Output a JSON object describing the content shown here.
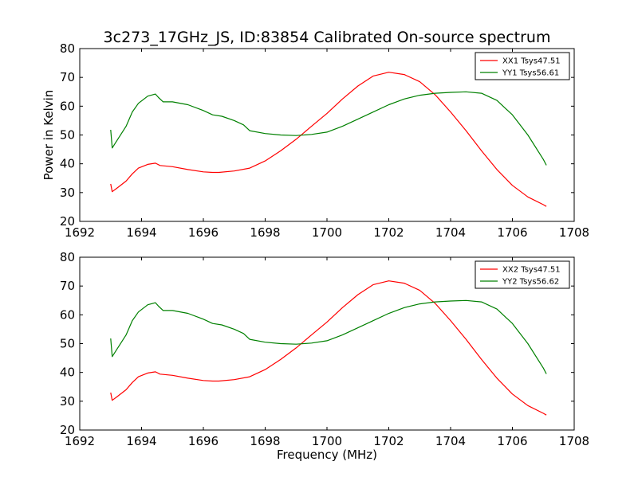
{
  "title": "3c273_17GHz_JS, ID:83854 Calibrated On-source spectrum",
  "colors": {
    "xx": "#ff0000",
    "yy": "#008000",
    "frame": "#000000",
    "background": "#ffffff"
  },
  "chart_data": [
    {
      "type": "line",
      "panel": "top",
      "title": "3c273_17GHz_JS, ID:83854 Calibrated On-source spectrum",
      "xlabel": "",
      "ylabel": "Power in Kelvin",
      "xlim": [
        1692,
        1708
      ],
      "ylim": [
        20,
        80
      ],
      "xticks": [
        "1692",
        "1694",
        "1696",
        "1698",
        "1700",
        "1702",
        "1704",
        "1706",
        "1708"
      ],
      "yticks": [
        "20",
        "30",
        "40",
        "50",
        "60",
        "70",
        "80"
      ],
      "grid": false,
      "legend_position": "top-right",
      "series": [
        {
          "name": "XX1 Tsys47.51",
          "color": "#ff0000",
          "x": [
            1693.0,
            1693.05,
            1693.2,
            1693.5,
            1693.7,
            1693.9,
            1694.2,
            1694.45,
            1694.6,
            1695.0,
            1695.5,
            1696.0,
            1696.3,
            1696.5,
            1697.0,
            1697.5,
            1698.0,
            1698.5,
            1699.0,
            1699.5,
            1700.0,
            1700.5,
            1701.0,
            1701.5,
            1702.0,
            1702.5,
            1703.0,
            1703.5,
            1704.0,
            1704.5,
            1705.0,
            1705.5,
            1706.0,
            1706.5,
            1707.0,
            1707.1
          ],
          "y": [
            33,
            30.3,
            31.5,
            34,
            36.5,
            38.5,
            39.8,
            40.2,
            39.4,
            39,
            38,
            37.2,
            37,
            37,
            37.5,
            38.5,
            41,
            44.5,
            48.5,
            53,
            57.5,
            62.5,
            67,
            70.5,
            71.8,
            71,
            68.5,
            64,
            58,
            51.5,
            44.5,
            38,
            32.5,
            28.5,
            25.8,
            25.2
          ]
        },
        {
          "name": "YY1 Tsys56.61",
          "color": "#008000",
          "x": [
            1693.0,
            1693.05,
            1693.2,
            1693.5,
            1693.7,
            1693.9,
            1694.2,
            1694.45,
            1694.55,
            1694.7,
            1695.0,
            1695.5,
            1696.0,
            1696.3,
            1696.6,
            1697.0,
            1697.3,
            1697.5,
            1698.0,
            1698.5,
            1699.0,
            1699.5,
            1700.0,
            1700.5,
            1701.0,
            1701.5,
            1702.0,
            1702.5,
            1703.0,
            1703.5,
            1704.0,
            1704.5,
            1705.0,
            1705.5,
            1706.0,
            1706.5,
            1707.0,
            1707.1
          ],
          "y": [
            51.8,
            45.5,
            48,
            53,
            58,
            61,
            63.5,
            64.2,
            63,
            61.5,
            61.5,
            60.5,
            58.5,
            57,
            56.5,
            55,
            53.5,
            51.5,
            50.5,
            50,
            49.8,
            50.2,
            51,
            53,
            55.5,
            58,
            60.5,
            62.5,
            63.8,
            64.5,
            64.8,
            65,
            64.5,
            62,
            57,
            50,
            41.5,
            39.5
          ]
        }
      ]
    },
    {
      "type": "line",
      "panel": "bottom",
      "title": "",
      "xlabel": "Frequency (MHz)",
      "ylabel": "",
      "xlim": [
        1692,
        1708
      ],
      "ylim": [
        20,
        80
      ],
      "xticks": [
        "1692",
        "1694",
        "1696",
        "1698",
        "1700",
        "1702",
        "1704",
        "1706",
        "1708"
      ],
      "yticks": [
        "20",
        "30",
        "40",
        "50",
        "60",
        "70",
        "80"
      ],
      "grid": false,
      "legend_position": "top-right",
      "series": [
        {
          "name": "XX2 Tsys47.51",
          "color": "#ff0000",
          "x": [
            1693.0,
            1693.05,
            1693.2,
            1693.5,
            1693.7,
            1693.9,
            1694.2,
            1694.45,
            1694.6,
            1695.0,
            1695.5,
            1696.0,
            1696.3,
            1696.5,
            1697.0,
            1697.5,
            1698.0,
            1698.5,
            1699.0,
            1699.5,
            1700.0,
            1700.5,
            1701.0,
            1701.5,
            1702.0,
            1702.5,
            1703.0,
            1703.5,
            1704.0,
            1704.5,
            1705.0,
            1705.5,
            1706.0,
            1706.5,
            1707.0,
            1707.1
          ],
          "y": [
            33,
            30.3,
            31.5,
            34,
            36.5,
            38.5,
            39.8,
            40.2,
            39.4,
            39,
            38,
            37.2,
            37,
            37,
            37.5,
            38.5,
            41,
            44.5,
            48.5,
            53,
            57.5,
            62.5,
            67,
            70.5,
            71.8,
            71,
            68.5,
            64,
            58,
            51.5,
            44.5,
            38,
            32.5,
            28.5,
            25.8,
            25.2
          ]
        },
        {
          "name": "YY2 Tsys56.62",
          "color": "#008000",
          "x": [
            1693.0,
            1693.05,
            1693.2,
            1693.5,
            1693.7,
            1693.9,
            1694.2,
            1694.45,
            1694.55,
            1694.7,
            1695.0,
            1695.5,
            1696.0,
            1696.3,
            1696.6,
            1697.0,
            1697.3,
            1697.5,
            1698.0,
            1698.5,
            1699.0,
            1699.5,
            1700.0,
            1700.5,
            1701.0,
            1701.5,
            1702.0,
            1702.5,
            1703.0,
            1703.5,
            1704.0,
            1704.5,
            1705.0,
            1705.5,
            1706.0,
            1706.5,
            1707.0,
            1707.1
          ],
          "y": [
            51.8,
            45.5,
            48,
            53,
            58,
            61,
            63.5,
            64.2,
            63,
            61.5,
            61.5,
            60.5,
            58.5,
            57,
            56.5,
            55,
            53.5,
            51.5,
            50.5,
            50,
            49.8,
            50.2,
            51,
            53,
            55.5,
            58,
            60.5,
            62.5,
            63.8,
            64.5,
            64.8,
            65,
            64.5,
            62,
            57,
            50,
            41.5,
            39.5
          ]
        }
      ]
    }
  ]
}
